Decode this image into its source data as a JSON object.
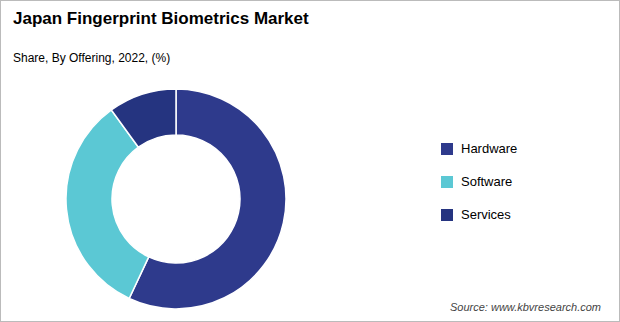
{
  "chart_data": {
    "type": "donut",
    "title": "Japan Fingerprint Biometrics  Market",
    "subtitle": "Share, By Offering, 2022, (%)",
    "annotations": [
      "Source: www.kbvresearch.com"
    ],
    "categories": [
      "Hardware",
      "Software",
      "Services"
    ],
    "values": [
      57,
      33,
      10
    ],
    "colors": [
      "#2e3a8c",
      "#5bc8d4",
      "#253480"
    ],
    "legend": "right"
  }
}
